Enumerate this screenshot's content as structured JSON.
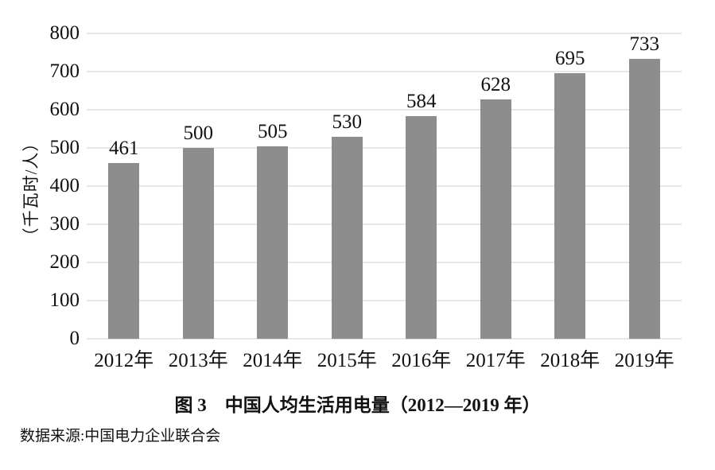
{
  "chart_data": {
    "type": "bar",
    "categories": [
      "2012年",
      "2013年",
      "2014年",
      "2015年",
      "2016年",
      "2017年",
      "2018年",
      "2019年"
    ],
    "values": [
      461,
      500,
      505,
      530,
      584,
      628,
      695,
      733
    ],
    "title": "图 3　中国人均生活用电量（2012—2019 年）",
    "xlabel": "",
    "ylabel": "（千瓦时/人）",
    "ylim": [
      0,
      800
    ],
    "ytick_step": 100,
    "yticks": [
      0,
      100,
      200,
      300,
      400,
      500,
      600,
      700,
      800
    ],
    "grid": true,
    "legend": "none",
    "bar_color": "#8d8d8d",
    "gridline_color": "#e7e7e7",
    "text_color": "#111111",
    "source": "数据来源:中国电力企业联合会"
  }
}
